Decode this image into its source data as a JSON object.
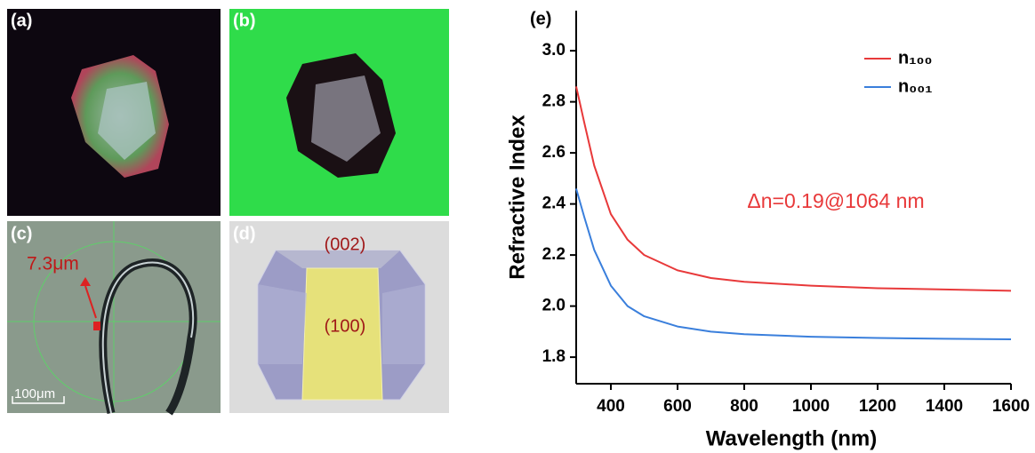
{
  "panels": {
    "a": {
      "label": "(a)"
    },
    "b": {
      "label": "(b)"
    },
    "c": {
      "label": "(c)",
      "size": "7.3μm",
      "scale": "100μm"
    },
    "d": {
      "label": "(d)",
      "top_face": "(002)",
      "front_face": "(100)"
    }
  },
  "chart_data": {
    "type": "line",
    "panel_label": "(e)",
    "x_label": "Wavelength (nm)",
    "y_label": "Refractive Index",
    "annotation": "Δn=0.19@1064 nm",
    "x": [
      296,
      320,
      350,
      400,
      450,
      500,
      600,
      700,
      800,
      1000,
      1200,
      1400,
      1600
    ],
    "series": [
      {
        "name": "n₁₀₀",
        "color": "#e8393a",
        "values": [
          2.86,
          2.72,
          2.55,
          2.36,
          2.26,
          2.2,
          2.14,
          2.11,
          2.095,
          2.08,
          2.07,
          2.065,
          2.06
        ]
      },
      {
        "name": "n₀₀₁",
        "color": "#3a7fdc",
        "values": [
          2.46,
          2.35,
          2.22,
          2.08,
          2.0,
          1.96,
          1.92,
          1.9,
          1.89,
          1.88,
          1.875,
          1.872,
          1.87
        ]
      }
    ],
    "xlim": [
      296,
      1600
    ],
    "ylim": [
      1.696,
      3.157
    ],
    "xticks": [
      400,
      600,
      800,
      1000,
      1200,
      1400,
      1600
    ],
    "yticks": [
      1.8,
      {
        "value": 2.0,
        "label": "2.0"
      },
      2.2,
      2.4,
      2.6,
      2.8,
      {
        "value": 3.0,
        "label": "3.0"
      }
    ],
    "legend": "upper right"
  }
}
